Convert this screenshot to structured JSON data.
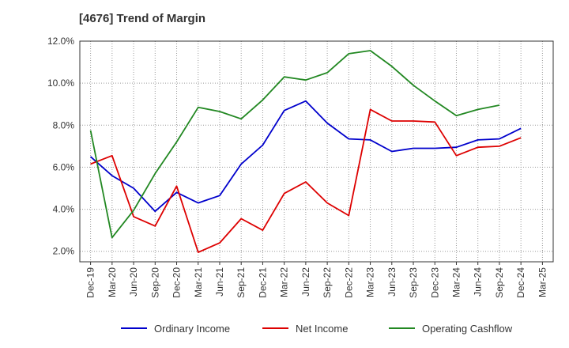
{
  "chart_data": {
    "type": "line",
    "title": "[4676]  Trend of Margin",
    "xlabel": "",
    "ylabel": "",
    "x": [
      "Dec-19",
      "Mar-20",
      "Jun-20",
      "Sep-20",
      "Dec-20",
      "Mar-21",
      "Jun-21",
      "Sep-21",
      "Dec-21",
      "Mar-22",
      "Jun-22",
      "Sep-22",
      "Dec-22",
      "Mar-23",
      "Jun-23",
      "Sep-23",
      "Dec-23",
      "Mar-24",
      "Jun-24",
      "Sep-24",
      "Dec-24",
      "Mar-25"
    ],
    "yticks": [
      "2.0%",
      "4.0%",
      "6.0%",
      "8.0%",
      "10.0%",
      "12.0%"
    ],
    "ylim": [
      1.5,
      12.0
    ],
    "grid": true,
    "legend_position": "bottom",
    "series": [
      {
        "name": "Ordinary Income",
        "color": "#0000cc",
        "values": [
          6.5,
          5.6,
          5.0,
          3.9,
          4.8,
          4.3,
          4.65,
          6.15,
          7.05,
          8.7,
          9.15,
          8.1,
          7.35,
          7.3,
          6.75,
          6.9,
          6.9,
          6.95,
          7.3,
          7.35,
          7.85,
          null
        ]
      },
      {
        "name": "Net Income",
        "color": "#dd0000",
        "values": [
          6.15,
          6.55,
          3.65,
          3.2,
          5.1,
          1.95,
          2.4,
          3.55,
          3.0,
          4.75,
          5.3,
          4.3,
          3.7,
          8.75,
          8.2,
          8.2,
          8.15,
          6.55,
          6.95,
          7.0,
          7.4,
          null
        ]
      },
      {
        "name": "Operating Cashflow",
        "color": "#228822",
        "values": [
          7.75,
          2.65,
          3.95,
          5.7,
          7.2,
          8.85,
          8.65,
          8.3,
          9.2,
          10.3,
          10.15,
          10.5,
          11.4,
          11.55,
          10.8,
          9.9,
          9.15,
          8.45,
          8.75,
          8.95,
          null,
          null
        ]
      }
    ]
  }
}
